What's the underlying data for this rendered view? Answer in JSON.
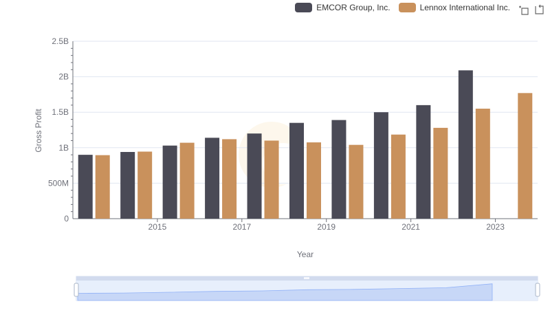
{
  "legend": [
    {
      "name": "EMCOR Group, Inc.",
      "color": "#4a4a56"
    },
    {
      "name": "Lennox International Inc.",
      "color": "#c9915c"
    }
  ],
  "toolbox": {
    "zoom_icon": "zoom-select-icon",
    "restore_icon": "restore-icon"
  },
  "chart_data": {
    "type": "bar",
    "categories": [
      "2014",
      "2015",
      "2016",
      "2017",
      "2018",
      "2019",
      "2020",
      "2021",
      "2022",
      "2023",
      "2024"
    ],
    "x_tick_labels": [
      "2015",
      "2017",
      "2019",
      "2021",
      "2023"
    ],
    "y_tick_labels": [
      "0",
      "500M",
      "1B",
      "1.5B",
      "2B",
      "2.5B"
    ],
    "ylim": [
      0,
      2500000000
    ],
    "xlabel": "Year",
    "ylabel": "Gross Profit",
    "grid": true,
    "legend_position": "top-right",
    "series": [
      {
        "name": "EMCOR Group, Inc.",
        "color": "#4a4a56",
        "values": [
          900000000,
          940000000,
          1030000000,
          1140000000,
          1200000000,
          1350000000,
          1390000000,
          1500000000,
          1600000000,
          2090000000,
          null
        ]
      },
      {
        "name": "Lennox International Inc.",
        "color": "#c9915c",
        "values": [
          895000000,
          945000000,
          1070000000,
          1120000000,
          1100000000,
          1075000000,
          1040000000,
          1185000000,
          1280000000,
          1550000000,
          1770000000
        ]
      }
    ]
  }
}
